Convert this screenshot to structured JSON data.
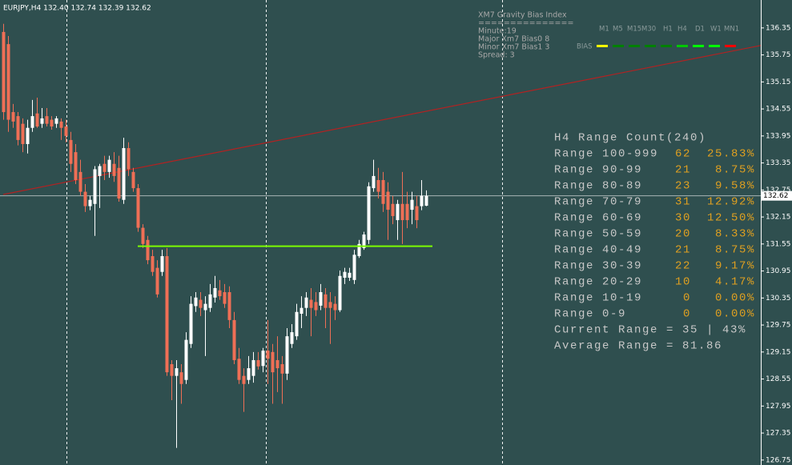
{
  "chart_data": {
    "type": "candlestick",
    "title": "EURJPY,H4  132.40 132.74 132.39 132.62",
    "ylim": [
      126.64,
      136.97
    ],
    "yticks": [
      136.35,
      135.75,
      135.15,
      134.55,
      133.95,
      133.35,
      132.75,
      132.15,
      131.55,
      130.95,
      130.35,
      129.75,
      129.15,
      128.55,
      127.95,
      127.35,
      126.75
    ],
    "background": "#2f4f4f",
    "bull_color": "#ffffff",
    "bear_color": "#ef6f56",
    "candles": [
      [
        136.26,
        136.44,
        134.31,
        134.48
      ],
      [
        135.99,
        136.17,
        134.04,
        134.31
      ],
      [
        134.48,
        134.66,
        134.13,
        134.27
      ],
      [
        134.39,
        134.48,
        133.74,
        133.86
      ],
      [
        134.22,
        134.34,
        133.59,
        133.77
      ],
      [
        133.77,
        134.31,
        133.56,
        134.13
      ],
      [
        134.13,
        134.75,
        134.04,
        134.39
      ],
      [
        134.45,
        134.8,
        134.13,
        134.16
      ],
      [
        134.22,
        134.57,
        134.13,
        134.34
      ],
      [
        134.39,
        134.57,
        134.16,
        134.22
      ],
      [
        134.31,
        134.39,
        134.09,
        134.16
      ],
      [
        134.22,
        134.39,
        134.13,
        134.34
      ],
      [
        134.27,
        134.34,
        133.86,
        134.13
      ],
      [
        134.16,
        134.31,
        133.81,
        133.95
      ],
      [
        133.86,
        134.04,
        133.15,
        133.33
      ],
      [
        133.59,
        133.77,
        132.88,
        132.97
      ],
      [
        133.15,
        133.42,
        132.62,
        132.71
      ],
      [
        132.71,
        132.88,
        132.26,
        132.39
      ],
      [
        132.39,
        132.62,
        132.3,
        132.53
      ],
      [
        132.44,
        133.28,
        131.73,
        133.21
      ],
      [
        133.06,
        133.33,
        132.35,
        133.28
      ],
      [
        133.33,
        133.51,
        132.97,
        133.15
      ],
      [
        133.15,
        133.51,
        133.02,
        133.42
      ],
      [
        133.33,
        133.59,
        132.93,
        133.06
      ],
      [
        133.24,
        133.51,
        132.49,
        132.56
      ],
      [
        132.53,
        133.91,
        132.44,
        133.68
      ],
      [
        133.68,
        133.81,
        133.06,
        133.21
      ],
      [
        133.15,
        133.24,
        132.71,
        132.79
      ],
      [
        132.79,
        132.88,
        131.82,
        131.91
      ],
      [
        131.91,
        131.99,
        131.46,
        131.55
      ],
      [
        131.64,
        131.73,
        131.1,
        131.19
      ],
      [
        131.28,
        131.42,
        130.84,
        130.93
      ],
      [
        131.02,
        131.19,
        130.36,
        130.43
      ],
      [
        130.93,
        131.42,
        130.84,
        131.28
      ],
      [
        131.28,
        131.46,
        128.62,
        128.7
      ],
      [
        128.88,
        128.97,
        128.08,
        128.62
      ],
      [
        128.62,
        128.97,
        127.02,
        128.79
      ],
      [
        128.7,
        128.88,
        128.0,
        128.44
      ],
      [
        128.53,
        129.59,
        128.44,
        129.42
      ],
      [
        129.33,
        130.39,
        129.24,
        130.22
      ],
      [
        130.17,
        130.48,
        130.04,
        130.36
      ],
      [
        130.31,
        130.48,
        129.95,
        130.13
      ],
      [
        130.08,
        130.39,
        129.06,
        130.22
      ],
      [
        130.13,
        130.66,
        130.04,
        130.43
      ],
      [
        130.36,
        130.84,
        130.25,
        130.57
      ],
      [
        130.52,
        130.75,
        130.31,
        130.39
      ],
      [
        130.48,
        130.66,
        130.13,
        130.22
      ],
      [
        130.48,
        130.61,
        129.68,
        129.86
      ],
      [
        129.86,
        130.04,
        128.88,
        128.97
      ],
      [
        129.0,
        129.24,
        128.44,
        128.53
      ],
      [
        128.62,
        128.79,
        127.82,
        128.44
      ],
      [
        128.53,
        129.06,
        128.44,
        128.79
      ],
      [
        128.62,
        129.15,
        128.47,
        128.97
      ],
      [
        128.97,
        129.15,
        128.76,
        128.83
      ],
      [
        128.84,
        129.24,
        128.7,
        129.18
      ],
      [
        129.18,
        129.86,
        128.44,
        129.0
      ],
      [
        129.15,
        129.33,
        128.0,
        128.7
      ],
      [
        128.97,
        129.5,
        128.26,
        128.79
      ],
      [
        128.88,
        129.06,
        128.0,
        128.67
      ],
      [
        128.67,
        129.68,
        128.53,
        129.5
      ],
      [
        129.33,
        129.77,
        129.24,
        129.59
      ],
      [
        129.5,
        130.22,
        129.42,
        130.04
      ],
      [
        130.0,
        130.39,
        129.68,
        130.13
      ],
      [
        130.13,
        130.48,
        129.95,
        130.36
      ],
      [
        130.31,
        130.57,
        129.5,
        130.13
      ],
      [
        130.26,
        130.48,
        129.95,
        130.08
      ],
      [
        130.18,
        130.66,
        130.08,
        130.48
      ],
      [
        130.43,
        130.57,
        129.68,
        130.13
      ],
      [
        130.26,
        130.48,
        129.33,
        130.13
      ],
      [
        130.22,
        130.39,
        129.86,
        130.08
      ],
      [
        130.08,
        130.96,
        130.04,
        130.84
      ],
      [
        130.8,
        131.02,
        130.66,
        130.93
      ],
      [
        130.8,
        131.02,
        130.73,
        130.91
      ],
      [
        130.75,
        131.42,
        130.66,
        131.31
      ],
      [
        131.28,
        131.64,
        131.24,
        131.55
      ],
      [
        131.46,
        131.82,
        131.42,
        131.76
      ],
      [
        131.64,
        132.92,
        131.55,
        132.83
      ],
      [
        132.79,
        133.42,
        132.71,
        133.06
      ],
      [
        132.97,
        133.24,
        132.56,
        132.71
      ],
      [
        132.97,
        133.15,
        132.26,
        132.44
      ],
      [
        132.71,
        132.92,
        131.64,
        132.31
      ],
      [
        132.44,
        132.62,
        131.99,
        132.17
      ],
      [
        132.08,
        132.53,
        131.64,
        132.44
      ],
      [
        132.44,
        133.15,
        131.55,
        132.08
      ],
      [
        132.44,
        132.71,
        131.9,
        132.08
      ],
      [
        132.31,
        132.71,
        131.99,
        132.53
      ],
      [
        132.39,
        132.62,
        131.9,
        132.08
      ],
      [
        132.39,
        132.97,
        132.3,
        132.62
      ],
      [
        132.4,
        132.74,
        132.39,
        132.62
      ]
    ],
    "last_price": 132.62,
    "trendline": {
      "color": "#b22222",
      "values": [
        132.65,
        135.96
      ]
    },
    "level": {
      "color": "#7cfc00",
      "value": 131.5
    },
    "indicator": {
      "title": "XM7 Gravity Bias Index",
      "separator": "===============",
      "lines": [
        "Minute:19",
        "Major Xm7 Bias0 8",
        "Minor Xm7 Bias1 3",
        "Spread: 3"
      ],
      "timeframes": [
        "M1",
        "M5",
        "M15",
        "M30",
        "H1",
        "H4",
        "D1",
        "W1",
        "MN1"
      ],
      "bias_label": "BIAS",
      "bias_colors": [
        "#ffff00",
        "#008000",
        "#008000",
        "#008000",
        "#008000",
        "#00c800",
        "#00ff00",
        "#00ff00",
        "#ff0000"
      ]
    },
    "range_table": {
      "title": "H4 Range Count(240)",
      "rows": [
        [
          "Range 100-999",
          "62",
          "25.83%"
        ],
        [
          "Range 90-99",
          "21",
          "8.75%"
        ],
        [
          "Range 80-89",
          "23",
          "9.58%"
        ],
        [
          "Range 70-79",
          "31",
          "12.92%"
        ],
        [
          "Range 60-69",
          "30",
          "12.50%"
        ],
        [
          "Range 50-59",
          "20",
          "8.33%"
        ],
        [
          "Range 40-49",
          "21",
          "8.75%"
        ],
        [
          "Range 30-39",
          "22",
          "9.17%"
        ],
        [
          "Range 20-29",
          "10",
          "4.17%"
        ],
        [
          "Range 10-19",
          "0",
          "0.00%"
        ],
        [
          "Range 0-9",
          "0",
          "0.00%"
        ]
      ],
      "footer": [
        "Current Range = 35 | 43%",
        "Average Range = 81.86"
      ]
    }
  }
}
